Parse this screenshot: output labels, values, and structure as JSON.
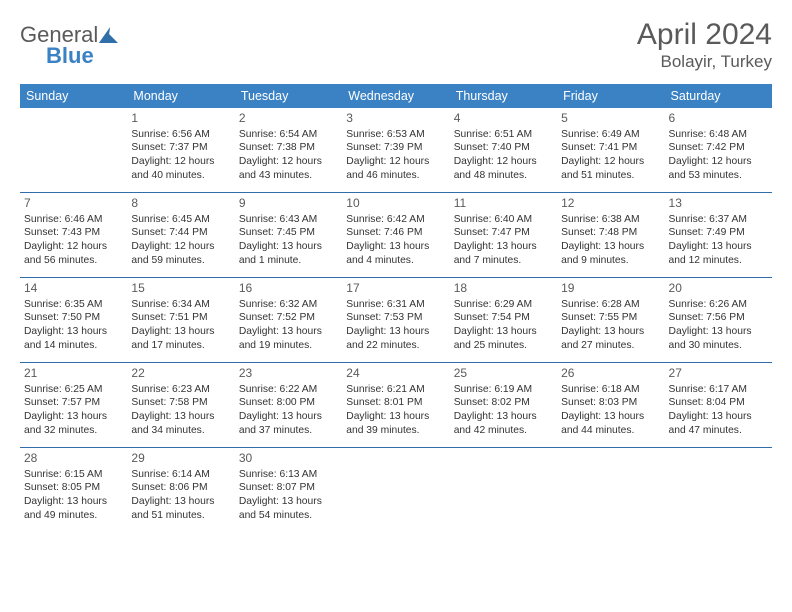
{
  "logo": {
    "word1": "General",
    "word2": "Blue"
  },
  "title": "April 2024",
  "location": "Bolayir, Turkey",
  "colors": {
    "header_bg": "#3b82c4",
    "header_text": "#ffffff",
    "rule": "#2f6ea8",
    "text": "#333333",
    "muted": "#5a5a5a",
    "background": "#ffffff"
  },
  "day_names": [
    "Sunday",
    "Monday",
    "Tuesday",
    "Wednesday",
    "Thursday",
    "Friday",
    "Saturday"
  ],
  "weeks": [
    [
      null,
      {
        "n": "1",
        "sr": "6:56 AM",
        "ss": "7:37 PM",
        "dl": "12 hours and 40 minutes."
      },
      {
        "n": "2",
        "sr": "6:54 AM",
        "ss": "7:38 PM",
        "dl": "12 hours and 43 minutes."
      },
      {
        "n": "3",
        "sr": "6:53 AM",
        "ss": "7:39 PM",
        "dl": "12 hours and 46 minutes."
      },
      {
        "n": "4",
        "sr": "6:51 AM",
        "ss": "7:40 PM",
        "dl": "12 hours and 48 minutes."
      },
      {
        "n": "5",
        "sr": "6:49 AM",
        "ss": "7:41 PM",
        "dl": "12 hours and 51 minutes."
      },
      {
        "n": "6",
        "sr": "6:48 AM",
        "ss": "7:42 PM",
        "dl": "12 hours and 53 minutes."
      }
    ],
    [
      {
        "n": "7",
        "sr": "6:46 AM",
        "ss": "7:43 PM",
        "dl": "12 hours and 56 minutes."
      },
      {
        "n": "8",
        "sr": "6:45 AM",
        "ss": "7:44 PM",
        "dl": "12 hours and 59 minutes."
      },
      {
        "n": "9",
        "sr": "6:43 AM",
        "ss": "7:45 PM",
        "dl": "13 hours and 1 minute."
      },
      {
        "n": "10",
        "sr": "6:42 AM",
        "ss": "7:46 PM",
        "dl": "13 hours and 4 minutes."
      },
      {
        "n": "11",
        "sr": "6:40 AM",
        "ss": "7:47 PM",
        "dl": "13 hours and 7 minutes."
      },
      {
        "n": "12",
        "sr": "6:38 AM",
        "ss": "7:48 PM",
        "dl": "13 hours and 9 minutes."
      },
      {
        "n": "13",
        "sr": "6:37 AM",
        "ss": "7:49 PM",
        "dl": "13 hours and 12 minutes."
      }
    ],
    [
      {
        "n": "14",
        "sr": "6:35 AM",
        "ss": "7:50 PM",
        "dl": "13 hours and 14 minutes."
      },
      {
        "n": "15",
        "sr": "6:34 AM",
        "ss": "7:51 PM",
        "dl": "13 hours and 17 minutes."
      },
      {
        "n": "16",
        "sr": "6:32 AM",
        "ss": "7:52 PM",
        "dl": "13 hours and 19 minutes."
      },
      {
        "n": "17",
        "sr": "6:31 AM",
        "ss": "7:53 PM",
        "dl": "13 hours and 22 minutes."
      },
      {
        "n": "18",
        "sr": "6:29 AM",
        "ss": "7:54 PM",
        "dl": "13 hours and 25 minutes."
      },
      {
        "n": "19",
        "sr": "6:28 AM",
        "ss": "7:55 PM",
        "dl": "13 hours and 27 minutes."
      },
      {
        "n": "20",
        "sr": "6:26 AM",
        "ss": "7:56 PM",
        "dl": "13 hours and 30 minutes."
      }
    ],
    [
      {
        "n": "21",
        "sr": "6:25 AM",
        "ss": "7:57 PM",
        "dl": "13 hours and 32 minutes."
      },
      {
        "n": "22",
        "sr": "6:23 AM",
        "ss": "7:58 PM",
        "dl": "13 hours and 34 minutes."
      },
      {
        "n": "23",
        "sr": "6:22 AM",
        "ss": "8:00 PM",
        "dl": "13 hours and 37 minutes."
      },
      {
        "n": "24",
        "sr": "6:21 AM",
        "ss": "8:01 PM",
        "dl": "13 hours and 39 minutes."
      },
      {
        "n": "25",
        "sr": "6:19 AM",
        "ss": "8:02 PM",
        "dl": "13 hours and 42 minutes."
      },
      {
        "n": "26",
        "sr": "6:18 AM",
        "ss": "8:03 PM",
        "dl": "13 hours and 44 minutes."
      },
      {
        "n": "27",
        "sr": "6:17 AM",
        "ss": "8:04 PM",
        "dl": "13 hours and 47 minutes."
      }
    ],
    [
      {
        "n": "28",
        "sr": "6:15 AM",
        "ss": "8:05 PM",
        "dl": "13 hours and 49 minutes."
      },
      {
        "n": "29",
        "sr": "6:14 AM",
        "ss": "8:06 PM",
        "dl": "13 hours and 51 minutes."
      },
      {
        "n": "30",
        "sr": "6:13 AM",
        "ss": "8:07 PM",
        "dl": "13 hours and 54 minutes."
      },
      null,
      null,
      null,
      null
    ]
  ],
  "labels": {
    "sunrise": "Sunrise:",
    "sunset": "Sunset:",
    "daylight": "Daylight:"
  }
}
